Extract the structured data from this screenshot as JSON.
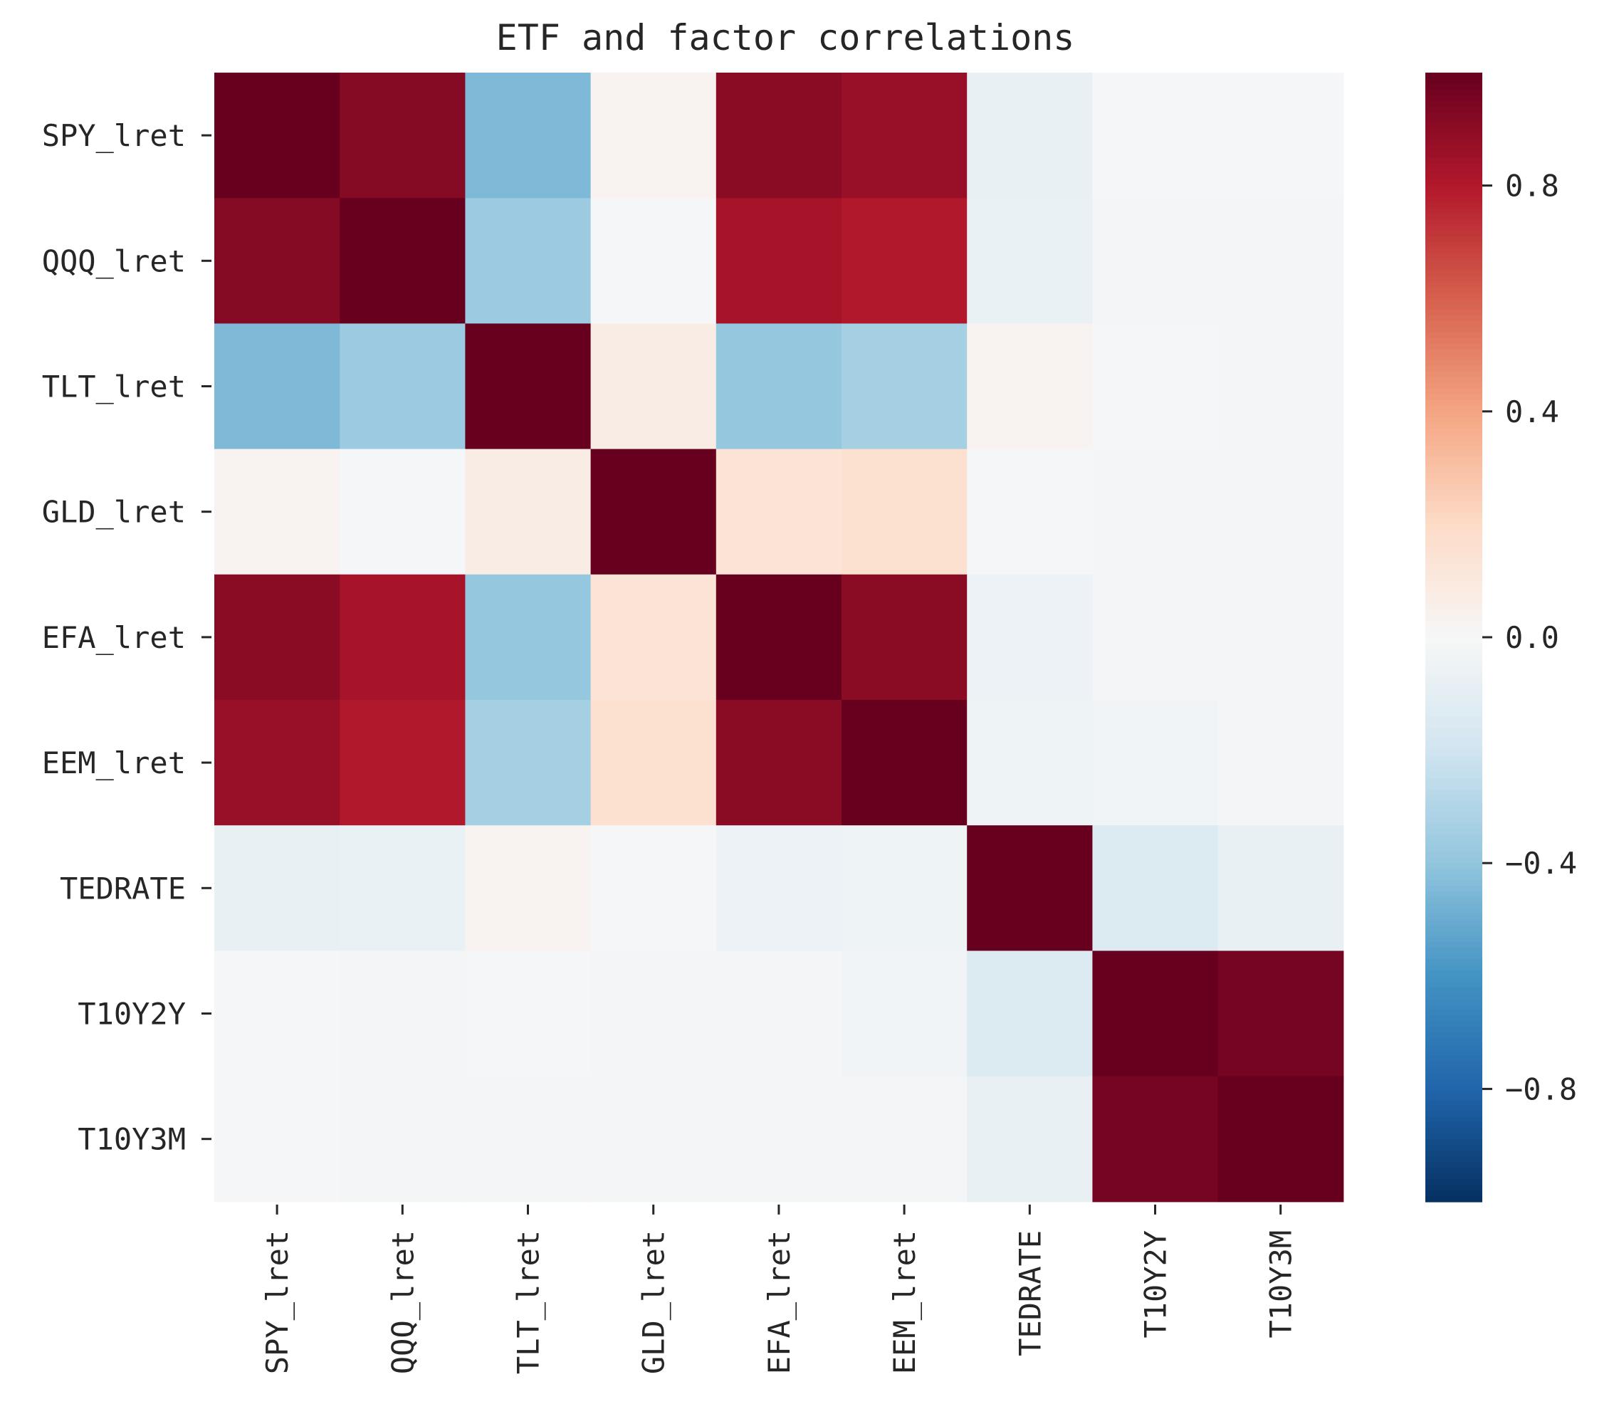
{
  "chart_data": {
    "type": "heatmap",
    "title": "ETF and factor correlations",
    "xlabel": "",
    "ylabel": "",
    "row_labels": [
      "SPY_lret",
      "QQQ_lret",
      "TLT_lret",
      "GLD_lret",
      "EFA_lret",
      "EEM_lret",
      "TEDRATE",
      "T10Y2Y",
      "T10Y3M"
    ],
    "col_labels": [
      "SPY_lret",
      "QQQ_lret",
      "TLT_lret",
      "GLD_lret",
      "EFA_lret",
      "EEM_lret",
      "TEDRATE",
      "T10Y2Y",
      "T10Y3M"
    ],
    "values": [
      [
        1.0,
        0.92,
        -0.45,
        0.03,
        0.91,
        0.87,
        -0.08,
        -0.01,
        -0.01
      ],
      [
        0.92,
        1.0,
        -0.37,
        -0.01,
        0.83,
        0.8,
        -0.07,
        -0.02,
        -0.02
      ],
      [
        -0.45,
        -0.37,
        1.0,
        0.08,
        -0.39,
        -0.34,
        0.03,
        -0.01,
        -0.02
      ],
      [
        0.03,
        -0.01,
        0.08,
        1.0,
        0.14,
        0.16,
        -0.01,
        -0.02,
        -0.02
      ],
      [
        0.91,
        0.83,
        -0.39,
        0.14,
        1.0,
        0.91,
        -0.06,
        -0.02,
        -0.02
      ],
      [
        0.87,
        0.8,
        -0.34,
        0.16,
        0.91,
        1.0,
        -0.05,
        -0.03,
        -0.02
      ],
      [
        -0.08,
        -0.07,
        0.03,
        -0.01,
        -0.06,
        -0.05,
        1.0,
        -0.14,
        -0.08
      ],
      [
        -0.01,
        -0.02,
        -0.01,
        -0.02,
        -0.02,
        -0.03,
        -0.14,
        1.0,
        0.96
      ],
      [
        -0.01,
        -0.02,
        -0.02,
        -0.02,
        -0.02,
        -0.02,
        -0.08,
        0.96,
        1.0
      ]
    ],
    "colormap": "RdBu_r",
    "vmin": -1.0,
    "vmax": 1.0,
    "colorbar_ticks": [
      0.8,
      0.4,
      0.0,
      -0.4,
      -0.8
    ],
    "colorbar_tick_labels": [
      "0.8",
      "0.4",
      "0.0",
      "−0.4",
      "−0.8"
    ],
    "grid": false
  }
}
